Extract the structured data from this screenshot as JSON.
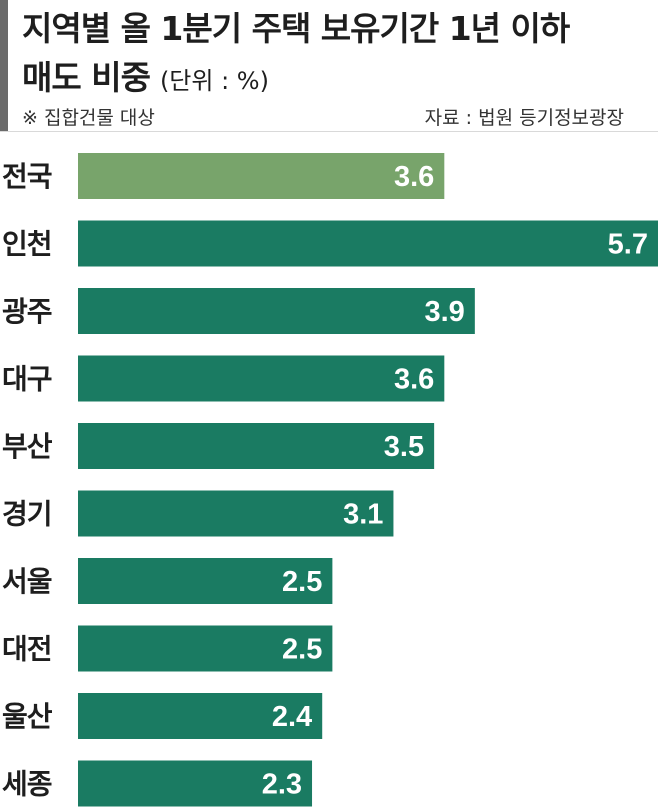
{
  "header": {
    "title_line1": "지역별 올 1분기 주택 보유기간 1년 이하",
    "title_line2": "매도 비중",
    "unit": "(단위 : %)",
    "note": "※ 집합건물 대상",
    "source": "자료 : 법원 등기정보광장"
  },
  "colors": {
    "highlight_bar": "#78a46b",
    "bar": "#1a7b62",
    "value_label": "#ffffff",
    "category_label": "#1e1e1e"
  },
  "chart_data": {
    "type": "bar",
    "orientation": "horizontal",
    "categories": [
      "전국",
      "인천",
      "광주",
      "대구",
      "부산",
      "경기",
      "서울",
      "대전",
      "울산",
      "세종"
    ],
    "values": [
      3.6,
      5.7,
      3.9,
      3.6,
      3.5,
      3.1,
      2.5,
      2.5,
      2.4,
      2.3
    ],
    "value_labels": [
      "3.6",
      "5.7",
      "3.9",
      "3.6",
      "3.5",
      "3.1",
      "2.5",
      "2.5",
      "2.4",
      "2.3"
    ],
    "highlight_index": 0,
    "xlim": [
      0,
      5.7
    ],
    "title": "지역별 올 1분기 주택 보유기간 1년 이하 매도 비중",
    "xlabel": "",
    "ylabel": "",
    "grid": false,
    "legend": "none"
  }
}
